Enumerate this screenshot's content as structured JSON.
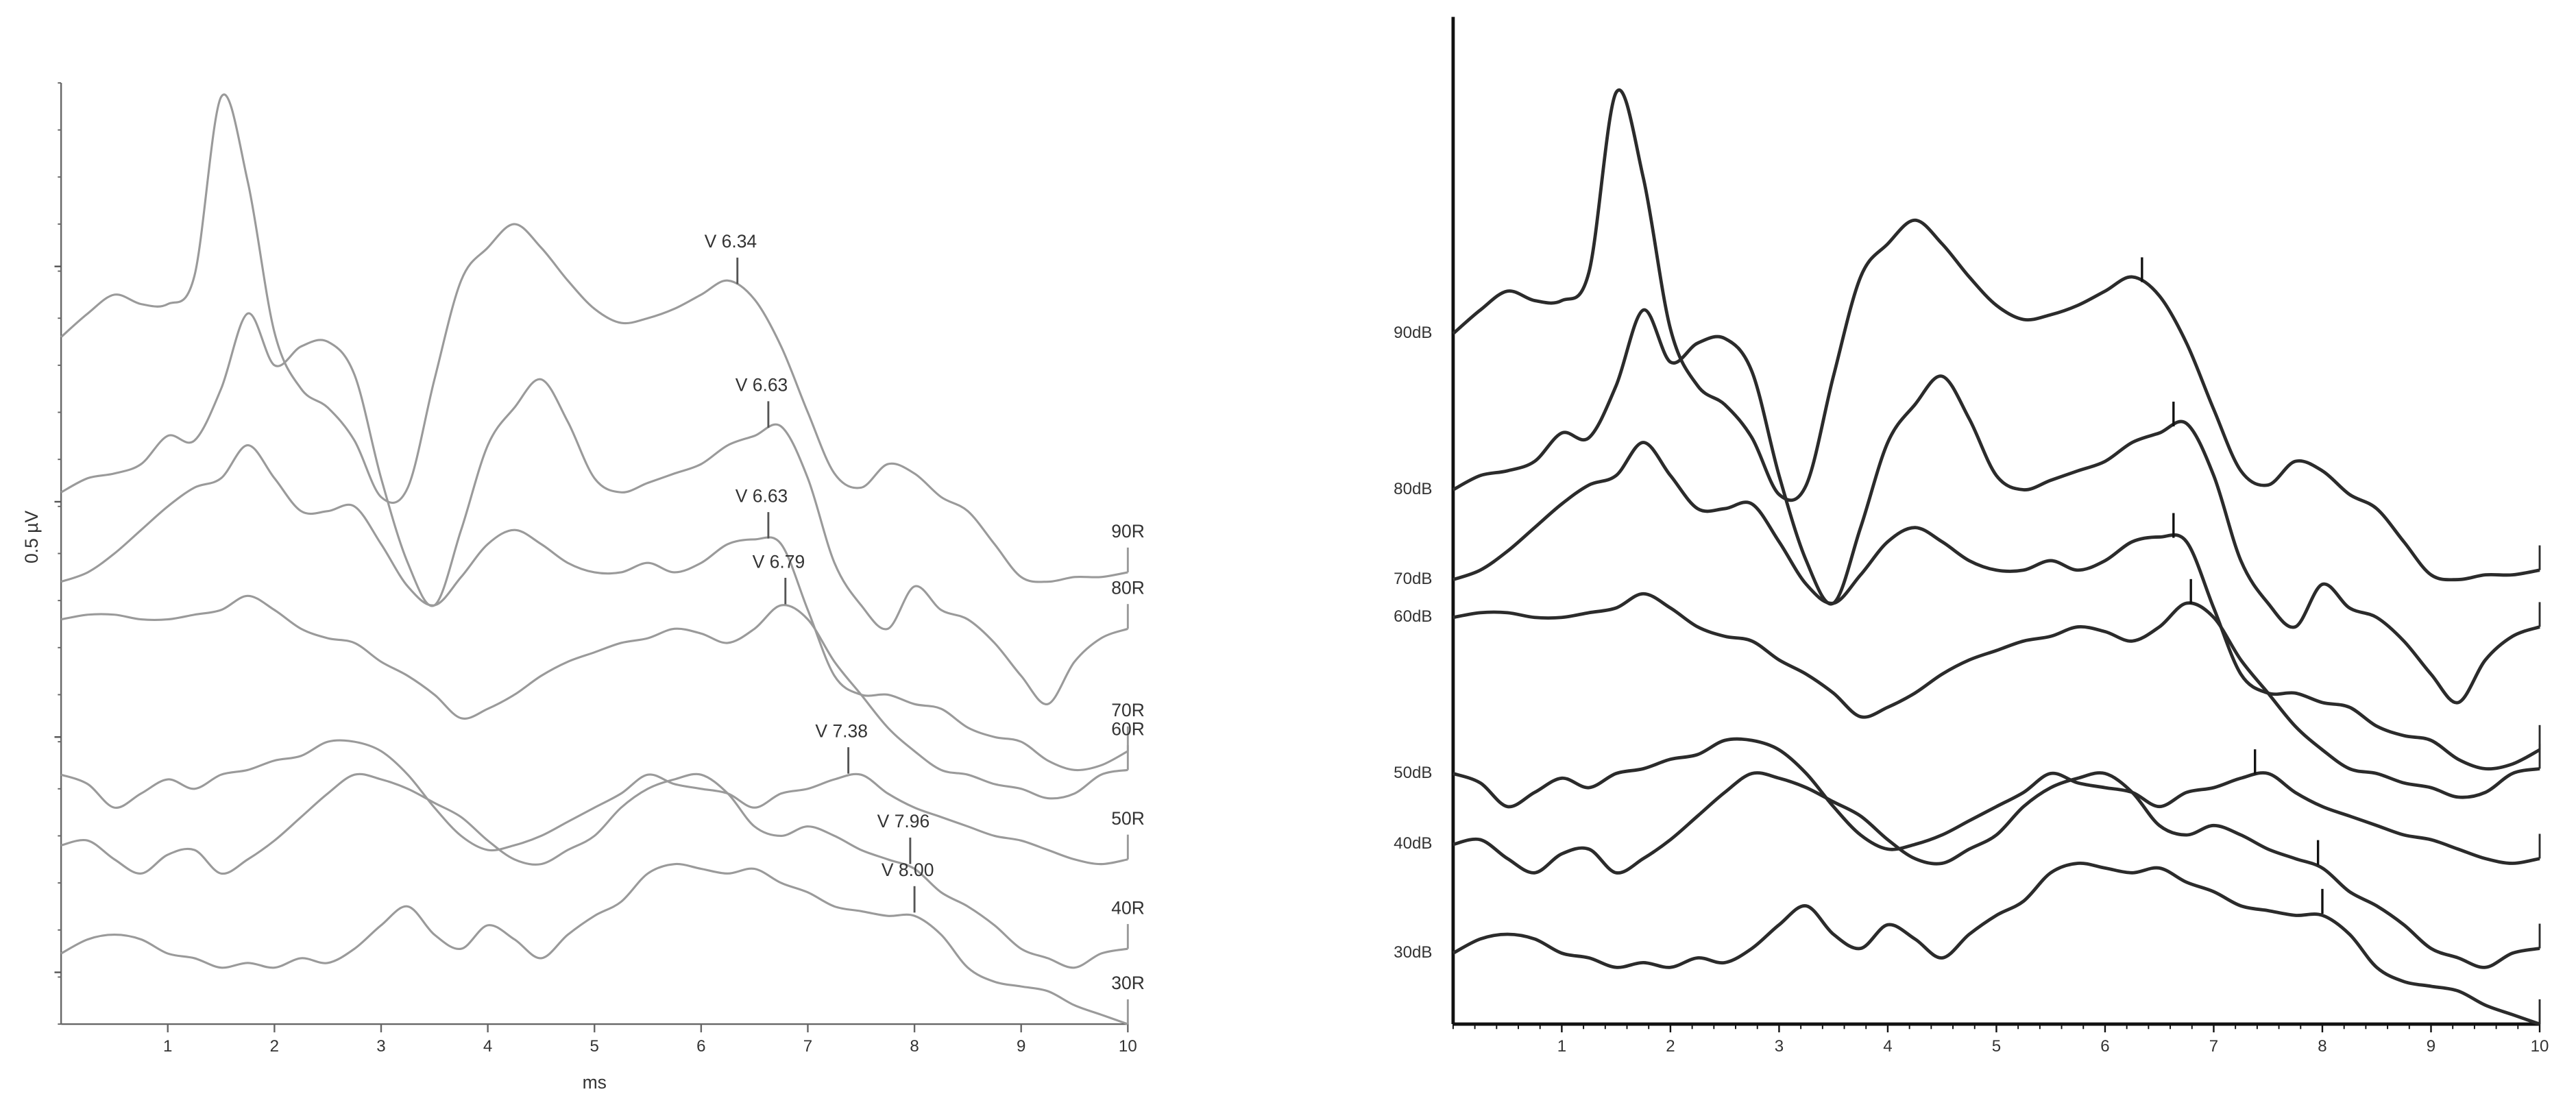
{
  "chart_data": [
    {
      "type": "line",
      "x_label": "ms",
      "y_label": "0.5 µV",
      "xlim": [
        0,
        10
      ],
      "ylim": [
        0,
        2
      ],
      "xticks": [
        1,
        2,
        3,
        4,
        5,
        6,
        7,
        8,
        9,
        10
      ],
      "yticks": [
        0.11,
        0.61,
        1.11,
        1.61
      ],
      "x": [
        0,
        0.25,
        0.5,
        0.75,
        1,
        1.25,
        1.5,
        1.75,
        2,
        2.25,
        2.5,
        2.75,
        3,
        3.25,
        3.5,
        3.75,
        4,
        4.25,
        4.5,
        4.75,
        5,
        5.25,
        5.5,
        5.75,
        6,
        6.25,
        6.5,
        6.75,
        7,
        7.25,
        7.5,
        7.75,
        8,
        8.25,
        8.5,
        8.75,
        9,
        9.25,
        9.5,
        9.75,
        10
      ],
      "series": [
        {
          "name": "90R",
          "color": "#9a9a9a",
          "peak": {
            "label": "V 6.34",
            "x": 6.34
          },
          "values": [
            1.46,
            1.51,
            1.55,
            1.53,
            1.53,
            1.59,
            1.97,
            1.79,
            1.47,
            1.35,
            1.31,
            1.24,
            1.12,
            1.14,
            1.37,
            1.58,
            1.65,
            1.7,
            1.65,
            1.58,
            1.52,
            1.49,
            1.5,
            1.52,
            1.55,
            1.58,
            1.54,
            1.44,
            1.3,
            1.17,
            1.14,
            1.19,
            1.17,
            1.12,
            1.09,
            1.02,
            0.95,
            0.94,
            0.95,
            0.95,
            0.96
          ]
        },
        {
          "name": "80R",
          "color": "#9a9a9a",
          "peak": {
            "label": "V 6.63",
            "x": 6.63
          },
          "values": [
            1.13,
            1.16,
            1.17,
            1.19,
            1.25,
            1.24,
            1.35,
            1.51,
            1.4,
            1.44,
            1.45,
            1.38,
            1.16,
            0.98,
            0.89,
            1.05,
            1.23,
            1.31,
            1.37,
            1.28,
            1.16,
            1.13,
            1.15,
            1.17,
            1.19,
            1.23,
            1.25,
            1.27,
            1.16,
            0.98,
            0.89,
            0.84,
            0.93,
            0.88,
            0.86,
            0.81,
            0.74,
            0.68,
            0.77,
            0.82,
            0.84
          ]
        },
        {
          "name": "70R",
          "color": "#9a9a9a",
          "peak": {
            "label": "V 6.63",
            "x": 6.63
          },
          "values": [
            0.94,
            0.96,
            1.0,
            1.05,
            1.1,
            1.14,
            1.16,
            1.23,
            1.16,
            1.09,
            1.09,
            1.1,
            1.02,
            0.93,
            0.89,
            0.95,
            1.02,
            1.05,
            1.02,
            0.98,
            0.96,
            0.96,
            0.98,
            0.96,
            0.98,
            1.02,
            1.03,
            1.02,
            0.88,
            0.74,
            0.7,
            0.7,
            0.68,
            0.67,
            0.63,
            0.61,
            0.6,
            0.56,
            0.54,
            0.55,
            0.58
          ]
        },
        {
          "name": "60R",
          "color": "#9a9a9a",
          "peak": {
            "label": "V 6.79",
            "x": 6.79
          },
          "values": [
            0.86,
            0.87,
            0.87,
            0.86,
            0.86,
            0.87,
            0.88,
            0.91,
            0.88,
            0.84,
            0.82,
            0.81,
            0.77,
            0.74,
            0.7,
            0.65,
            0.67,
            0.7,
            0.74,
            0.77,
            0.79,
            0.81,
            0.82,
            0.84,
            0.83,
            0.81,
            0.84,
            0.89,
            0.86,
            0.77,
            0.7,
            0.63,
            0.58,
            0.54,
            0.53,
            0.51,
            0.5,
            0.48,
            0.49,
            0.53,
            0.54
          ]
        },
        {
          "name": "50R",
          "color": "#9a9a9a",
          "peak": {
            "label": "V 7.38",
            "x": 7.38
          },
          "values": [
            0.53,
            0.51,
            0.46,
            0.49,
            0.52,
            0.5,
            0.53,
            0.54,
            0.56,
            0.57,
            0.6,
            0.6,
            0.58,
            0.53,
            0.46,
            0.4,
            0.37,
            0.38,
            0.4,
            0.43,
            0.46,
            0.49,
            0.53,
            0.51,
            0.5,
            0.49,
            0.46,
            0.49,
            0.5,
            0.52,
            0.53,
            0.49,
            0.46,
            0.44,
            0.42,
            0.4,
            0.39,
            0.37,
            0.35,
            0.34,
            0.35
          ]
        },
        {
          "name": "40R",
          "color": "#9a9a9a",
          "peak": {
            "label": "V 7.96",
            "x": 7.96
          },
          "values": [
            0.38,
            0.39,
            0.35,
            0.32,
            0.36,
            0.37,
            0.32,
            0.35,
            0.39,
            0.44,
            0.49,
            0.53,
            0.52,
            0.5,
            0.47,
            0.44,
            0.39,
            0.35,
            0.34,
            0.37,
            0.4,
            0.46,
            0.5,
            0.52,
            0.53,
            0.49,
            0.42,
            0.4,
            0.42,
            0.4,
            0.37,
            0.35,
            0.33,
            0.28,
            0.25,
            0.21,
            0.16,
            0.14,
            0.12,
            0.15,
            0.16
          ]
        },
        {
          "name": "30R",
          "color": "#9a9a9a",
          "peak": {
            "label": "V 8.00",
            "x": 8.0
          },
          "values": [
            0.15,
            0.18,
            0.19,
            0.18,
            0.15,
            0.14,
            0.12,
            0.13,
            0.12,
            0.14,
            0.13,
            0.16,
            0.21,
            0.25,
            0.19,
            0.16,
            0.21,
            0.18,
            0.14,
            0.19,
            0.23,
            0.26,
            0.32,
            0.34,
            0.33,
            0.32,
            0.33,
            0.3,
            0.28,
            0.25,
            0.24,
            0.23,
            0.23,
            0.19,
            0.12,
            0.09,
            0.08,
            0.07,
            0.04,
            0.02,
            0
          ]
        }
      ]
    },
    {
      "type": "line",
      "xlim": [
        0,
        10
      ],
      "ylim": [
        0,
        2.13
      ],
      "xticks": [
        1,
        2,
        3,
        4,
        5,
        6,
        7,
        8,
        9,
        10
      ],
      "x": [
        0,
        0.25,
        0.5,
        0.75,
        1,
        1.25,
        1.5,
        1.75,
        2,
        2.25,
        2.5,
        2.75,
        3,
        3.25,
        3.5,
        3.75,
        4,
        4.25,
        4.5,
        4.75,
        5,
        5.25,
        5.5,
        5.75,
        6,
        6.25,
        6.5,
        6.75,
        7,
        7.25,
        7.5,
        7.75,
        8,
        8.25,
        8.5,
        8.75,
        9,
        9.25,
        9.5,
        9.75,
        10
      ],
      "series": [
        {
          "name": "90dB",
          "color": "#2b2b2b",
          "peak_x": 6.34,
          "values": [
            1.46,
            1.51,
            1.55,
            1.53,
            1.53,
            1.59,
            1.97,
            1.79,
            1.47,
            1.35,
            1.31,
            1.24,
            1.12,
            1.14,
            1.37,
            1.58,
            1.65,
            1.7,
            1.65,
            1.58,
            1.52,
            1.49,
            1.5,
            1.52,
            1.55,
            1.58,
            1.54,
            1.44,
            1.3,
            1.17,
            1.14,
            1.19,
            1.17,
            1.12,
            1.09,
            1.02,
            0.95,
            0.94,
            0.95,
            0.95,
            0.96
          ]
        },
        {
          "name": "80dB",
          "color": "#2b2b2b",
          "peak_x": 6.63,
          "values": [
            1.13,
            1.16,
            1.17,
            1.19,
            1.25,
            1.24,
            1.35,
            1.51,
            1.4,
            1.44,
            1.45,
            1.38,
            1.16,
            0.98,
            0.89,
            1.05,
            1.23,
            1.31,
            1.37,
            1.28,
            1.16,
            1.13,
            1.15,
            1.17,
            1.19,
            1.23,
            1.25,
            1.27,
            1.16,
            0.98,
            0.89,
            0.84,
            0.93,
            0.88,
            0.86,
            0.81,
            0.74,
            0.68,
            0.77,
            0.82,
            0.84
          ]
        },
        {
          "name": "70dB",
          "color": "#2b2b2b",
          "peak_x": 6.63,
          "values": [
            0.94,
            0.96,
            1.0,
            1.05,
            1.1,
            1.14,
            1.16,
            1.23,
            1.16,
            1.09,
            1.09,
            1.1,
            1.02,
            0.93,
            0.89,
            0.95,
            1.02,
            1.05,
            1.02,
            0.98,
            0.96,
            0.96,
            0.98,
            0.96,
            0.98,
            1.02,
            1.03,
            1.02,
            0.88,
            0.74,
            0.7,
            0.7,
            0.68,
            0.67,
            0.63,
            0.61,
            0.6,
            0.56,
            0.54,
            0.55,
            0.58
          ]
        },
        {
          "name": "60dB",
          "color": "#2b2b2b",
          "peak_x": 6.79,
          "values": [
            0.86,
            0.87,
            0.87,
            0.86,
            0.86,
            0.87,
            0.88,
            0.91,
            0.88,
            0.84,
            0.82,
            0.81,
            0.77,
            0.74,
            0.7,
            0.65,
            0.67,
            0.7,
            0.74,
            0.77,
            0.79,
            0.81,
            0.82,
            0.84,
            0.83,
            0.81,
            0.84,
            0.89,
            0.86,
            0.77,
            0.7,
            0.63,
            0.58,
            0.54,
            0.53,
            0.51,
            0.5,
            0.48,
            0.49,
            0.53,
            0.54
          ]
        },
        {
          "name": "50dB",
          "color": "#2b2b2b",
          "peak_x": 7.38,
          "values": [
            0.53,
            0.51,
            0.46,
            0.49,
            0.52,
            0.5,
            0.53,
            0.54,
            0.56,
            0.57,
            0.6,
            0.6,
            0.58,
            0.53,
            0.46,
            0.4,
            0.37,
            0.38,
            0.4,
            0.43,
            0.46,
            0.49,
            0.53,
            0.51,
            0.5,
            0.49,
            0.46,
            0.49,
            0.5,
            0.52,
            0.53,
            0.49,
            0.46,
            0.44,
            0.42,
            0.4,
            0.39,
            0.37,
            0.35,
            0.34,
            0.35
          ]
        },
        {
          "name": "40dB",
          "color": "#2b2b2b",
          "peak_x": 7.96,
          "values": [
            0.38,
            0.39,
            0.35,
            0.32,
            0.36,
            0.37,
            0.32,
            0.35,
            0.39,
            0.44,
            0.49,
            0.53,
            0.52,
            0.5,
            0.47,
            0.44,
            0.39,
            0.35,
            0.34,
            0.37,
            0.4,
            0.46,
            0.5,
            0.52,
            0.53,
            0.49,
            0.42,
            0.4,
            0.42,
            0.4,
            0.37,
            0.35,
            0.33,
            0.28,
            0.25,
            0.21,
            0.16,
            0.14,
            0.12,
            0.15,
            0.16
          ]
        },
        {
          "name": "30dB",
          "color": "#2b2b2b",
          "peak_x": 8.0,
          "values": [
            0.15,
            0.18,
            0.19,
            0.18,
            0.15,
            0.14,
            0.12,
            0.13,
            0.12,
            0.14,
            0.13,
            0.16,
            0.21,
            0.25,
            0.19,
            0.16,
            0.21,
            0.18,
            0.14,
            0.19,
            0.23,
            0.26,
            0.32,
            0.34,
            0.33,
            0.32,
            0.33,
            0.3,
            0.28,
            0.25,
            0.24,
            0.23,
            0.23,
            0.19,
            0.12,
            0.09,
            0.08,
            0.07,
            0.04,
            0.02,
            0
          ]
        }
      ]
    }
  ]
}
